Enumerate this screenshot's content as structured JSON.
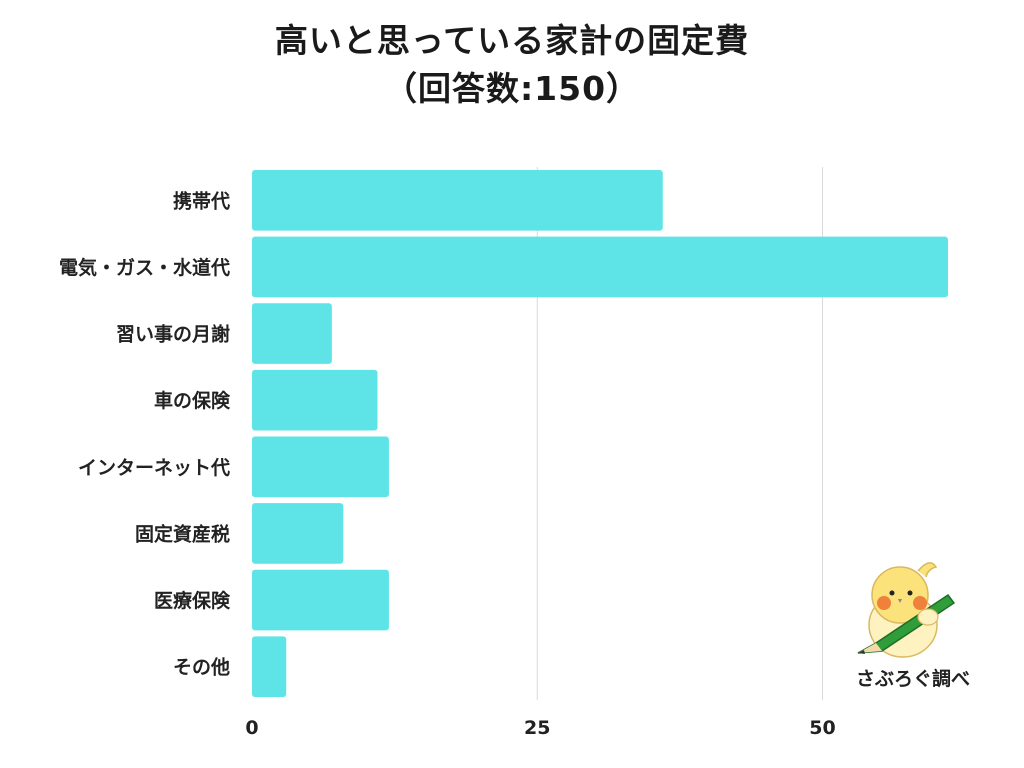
{
  "title": {
    "line1": "高いと思っている家計の固定費",
    "line2": "（回答数:150）"
  },
  "credit": "さぶろぐ調べ",
  "colors": {
    "bar": "#5ee3e6",
    "grid": "#d9d9d9",
    "text": "#222222"
  },
  "chart_data": {
    "type": "bar",
    "orientation": "horizontal",
    "categories": [
      "携帯代",
      "電気・ガス・水道代",
      "習い事の月謝",
      "車の保険",
      "インターネット代",
      "固定資産税",
      "医療保険",
      "その他"
    ],
    "values": [
      36,
      61,
      7,
      11,
      12,
      8,
      12,
      3
    ],
    "xlim": [
      0,
      61
    ],
    "xticks": [
      0,
      25,
      50
    ],
    "grid": true,
    "legend": "none"
  }
}
